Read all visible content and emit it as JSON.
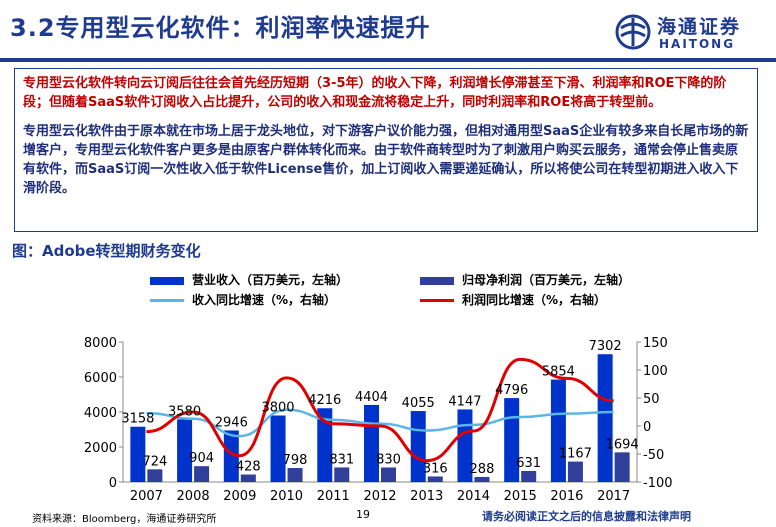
{
  "header": {
    "title": "3.2专用型云化软件：利润率快速提升",
    "logo_cn": "海通证券",
    "logo_en": "HAITONG",
    "logo_icon": "haitong-logo-icon",
    "accent_color": "#1f3b8f"
  },
  "textbox": {
    "para1": "专用型云化软件转向云订阅后往往会首先经历短期（3-5年）的收入下降，利润增长停滞甚至下滑、利润率和ROE下降的阶段；但随着SaaS软件订阅收入占比提升，公司的收入和现金流将稳定上升，同时利润率和ROE将高于转型前。",
    "para2": "专用型云化软件由于原本就在市场上居于龙头地位，对下游客户议价能力强，但相对通用型SaaS企业有较多来自长尾市场的新增客户，专用型云化软件客户更多是由原客户群体转化而来。由于软件商转型时为了刺激用户购买云服务，通常会停止售卖原有软件，而SaaS订阅一次性收入低于软件License售价，加上订阅收入需要递延确认，所以将使公司在转型初期进入收入下滑阶段。",
    "para1_color": "#c00000",
    "para2_color": "#1f2f7a"
  },
  "figure": {
    "caption": "图：Adobe转型期财务变化"
  },
  "legend": {
    "revenue": "营业收入（百万美元，左轴）",
    "net_profit": "归母净利润（百万美元，左轴）",
    "revenue_growth": "收入同比增速（%，右轴）",
    "profit_growth": "利润同比增速（%，右轴）"
  },
  "chart_data": {
    "type": "bar",
    "categories": [
      "2007",
      "2008",
      "2009",
      "2010",
      "2011",
      "2012",
      "2013",
      "2014",
      "2015",
      "2016",
      "2017"
    ],
    "series": [
      {
        "name": "营业收入（百万美元，左轴）",
        "kind": "bar",
        "axis": "left",
        "color": "#0033cc",
        "values": [
          3158,
          3580,
          2946,
          3800,
          4216,
          4404,
          4055,
          4147,
          4796,
          5854,
          7302
        ]
      },
      {
        "name": "归母净利润（百万美元，左轴）",
        "kind": "bar",
        "axis": "left",
        "color": "#2f3f9a",
        "values": [
          724,
          904,
          428,
          798,
          831,
          830,
          316,
          288,
          631,
          1167,
          1694
        ]
      },
      {
        "name": "收入同比增速（%，右轴）",
        "kind": "line",
        "axis": "right",
        "color": "#5bb6e8",
        "values": [
          23,
          13,
          -18,
          29,
          11,
          4,
          -8,
          2,
          16,
          22,
          25
        ]
      },
      {
        "name": "利润同比增速（%，右轴）",
        "kind": "line",
        "axis": "right",
        "color": "#e00000",
        "values": [
          -10,
          25,
          -53,
          86,
          4,
          0,
          -62,
          -9,
          119,
          85,
          45
        ]
      }
    ],
    "bar_labels": {
      "revenue": [
        "3158",
        "3580",
        "2946",
        "3800",
        "4216",
        "4404",
        "4055",
        "4147",
        "4796",
        "5854",
        "7302"
      ],
      "net_profit": [
        "724",
        "904",
        "428",
        "798",
        "831",
        "830",
        "316",
        "288",
        "631",
        "1167",
        "1694"
      ]
    },
    "y_left": {
      "min": 0,
      "max": 8000,
      "ticks": [
        "0",
        "2000",
        "4000",
        "6000",
        "8000"
      ]
    },
    "y_right": {
      "min": -100,
      "max": 150,
      "ticks": [
        "-100",
        "-50",
        "0",
        "50",
        "100",
        "150"
      ]
    },
    "grid": false
  },
  "footer": {
    "source": "资料来源：Bloomberg，海通证券研究所",
    "page": "19",
    "disclaimer": "请务必阅读正文之后的信息披露和法律声明"
  }
}
